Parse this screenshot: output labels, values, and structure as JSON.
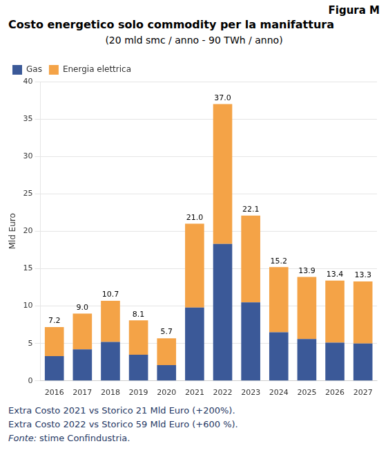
{
  "chart_data": {
    "type": "bar",
    "figure_label": "Figura M",
    "title": "Costo energetico solo commodity per la manifattura",
    "subtitle": "(20 mld smc / anno - 90 TWh / anno)",
    "ylabel": "Mld Euro",
    "categories": [
      "2016",
      "2017",
      "2018",
      "2019",
      "2020",
      "2021",
      "2022",
      "2023",
      "2024",
      "2025",
      "2026",
      "2027"
    ],
    "series": [
      {
        "name": "Gas",
        "color": "#3B5998",
        "values": [
          3.3,
          4.2,
          5.2,
          3.5,
          2.1,
          9.8,
          18.3,
          10.5,
          6.5,
          5.6,
          5.1,
          5.0
        ]
      },
      {
        "name": "Energia elettrica",
        "color": "#F4A347",
        "values": [
          3.9,
          4.8,
          5.5,
          4.6,
          3.6,
          11.2,
          18.7,
          11.6,
          8.7,
          8.3,
          8.3,
          8.3
        ]
      }
    ],
    "stacked": true,
    "totals": [
      7.2,
      9.0,
      10.7,
      8.1,
      5.7,
      21.0,
      37.0,
      22.1,
      15.2,
      13.9,
      13.4,
      13.3
    ],
    "total_labels": [
      "7.2",
      "9.0",
      "10.7",
      "8.1",
      "5.7",
      "21.0",
      "37.0",
      "22.1",
      "15.2",
      "13.9",
      "13.4",
      "13.3"
    ],
    "ylim": [
      0,
      40
    ],
    "yticks": [
      0,
      5,
      10,
      15,
      20,
      25,
      30,
      35,
      40
    ],
    "grid": "y",
    "legend": "upper left",
    "notes": [
      "Extra Costo 2021 vs Storico 21 Mld Euro (+200%).",
      "Extra Costo 2022 vs Storico 59 Mld Euro (+600 %)."
    ],
    "source_label": "Fonte:",
    "source": "stime Confindustria.",
    "notes_color": "#1F3864"
  }
}
